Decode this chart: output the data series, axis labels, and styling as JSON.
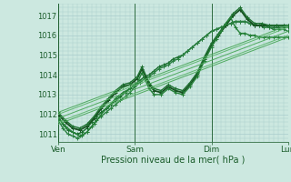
{
  "xlabel": "Pression niveau de la mer( hPa )",
  "bg_color": "#cce8e0",
  "grid_color": "#aacccc",
  "text_color": "#1a5c2a",
  "xlim": [
    0,
    96
  ],
  "ylim": [
    1010.6,
    1017.6
  ],
  "yticks": [
    1011,
    1012,
    1013,
    1014,
    1015,
    1016,
    1017
  ],
  "xtick_positions": [
    0,
    32,
    64,
    96
  ],
  "xtick_labels": [
    "Ven",
    "Sam",
    "Dim",
    "Lun"
  ],
  "series": [
    {
      "x": [
        0,
        2,
        4,
        6,
        8,
        10,
        12,
        14,
        16,
        18,
        20,
        22,
        24,
        26,
        28,
        30,
        32,
        34,
        36,
        38,
        40,
        42,
        44,
        46,
        48,
        50,
        52,
        54,
        56,
        58,
        60,
        62,
        64,
        66,
        68,
        70,
        72,
        74,
        76,
        78,
        80,
        82,
        84,
        86,
        88,
        90,
        92,
        94,
        96
      ],
      "y": [
        1011.9,
        1011.5,
        1011.2,
        1011.1,
        1011.0,
        1011.1,
        1011.3,
        1011.6,
        1011.9,
        1012.1,
        1012.3,
        1012.5,
        1012.7,
        1012.9,
        1013.1,
        1013.3,
        1013.5,
        1013.7,
        1013.9,
        1014.0,
        1014.2,
        1014.4,
        1014.5,
        1014.6,
        1014.8,
        1014.9,
        1015.0,
        1015.2,
        1015.4,
        1015.6,
        1015.8,
        1016.0,
        1016.2,
        1016.3,
        1016.4,
        1016.5,
        1016.6,
        1016.7,
        1016.7,
        1016.7,
        1016.6,
        1016.5,
        1016.5,
        1016.5,
        1016.4,
        1016.4,
        1016.4,
        1016.4,
        1016.4
      ],
      "marker": "+",
      "lw": 1.0,
      "color": "#1a6e2e",
      "ms": 2.5
    },
    {
      "x": [
        0,
        2,
        4,
        6,
        8,
        10,
        12,
        14,
        16,
        18,
        20,
        22,
        24,
        26,
        28,
        30,
        32,
        34,
        36,
        38,
        40,
        42,
        44,
        46,
        48,
        50,
        52,
        54,
        56,
        58,
        60,
        62,
        64,
        66,
        68,
        70,
        72,
        74,
        76,
        78,
        80,
        82,
        84,
        86,
        88,
        90,
        92,
        94,
        96
      ],
      "y": [
        1011.7,
        1011.3,
        1011.0,
        1010.9,
        1010.8,
        1010.9,
        1011.1,
        1011.4,
        1011.7,
        1011.9,
        1012.1,
        1012.3,
        1012.5,
        1012.7,
        1012.9,
        1013.1,
        1013.4,
        1013.6,
        1013.8,
        1013.9,
        1014.1,
        1014.3,
        1014.4,
        1014.5,
        1014.7,
        1014.8,
        1015.0,
        1015.2,
        1015.4,
        1015.6,
        1015.8,
        1016.0,
        1016.2,
        1016.3,
        1016.4,
        1016.5,
        1016.6,
        1016.7,
        1016.7,
        1016.7,
        1016.6,
        1016.5,
        1016.5,
        1016.4,
        1016.4,
        1016.3,
        1016.3,
        1016.3,
        1016.2
      ],
      "marker": "+",
      "lw": 1.0,
      "color": "#2a8040",
      "ms": 2.5
    },
    {
      "x": [
        0,
        3,
        6,
        9,
        12,
        15,
        18,
        21,
        24,
        27,
        30,
        33,
        35,
        38,
        40,
        43,
        46,
        49,
        52,
        55,
        58,
        61,
        64,
        67,
        70,
        73,
        76,
        79,
        82,
        85,
        88,
        91,
        94,
        96
      ],
      "y": [
        1012.0,
        1011.6,
        1011.3,
        1011.2,
        1011.4,
        1011.8,
        1012.3,
        1012.7,
        1013.1,
        1013.4,
        1013.5,
        1013.8,
        1014.3,
        1013.5,
        1013.2,
        1013.1,
        1013.4,
        1013.2,
        1013.1,
        1013.5,
        1014.0,
        1014.8,
        1015.5,
        1016.0,
        1016.5,
        1017.0,
        1017.3,
        1016.8,
        1016.5,
        1016.5,
        1016.5,
        1016.5,
        1016.5,
        1016.5
      ],
      "marker": "+",
      "lw": 1.3,
      "color": "#165020",
      "ms": 2.5
    },
    {
      "x": [
        0,
        3,
        6,
        9,
        12,
        15,
        18,
        21,
        24,
        27,
        30,
        33,
        35,
        38,
        40,
        43,
        46,
        49,
        52,
        55,
        58,
        61,
        64,
        67,
        70,
        73,
        76,
        79,
        82,
        85,
        88,
        91,
        94,
        96
      ],
      "y": [
        1012.1,
        1011.7,
        1011.4,
        1011.3,
        1011.5,
        1011.9,
        1012.4,
        1012.8,
        1013.2,
        1013.5,
        1013.6,
        1013.9,
        1014.4,
        1013.6,
        1013.3,
        1013.2,
        1013.5,
        1013.3,
        1013.2,
        1013.6,
        1014.1,
        1014.9,
        1015.6,
        1016.1,
        1016.6,
        1017.1,
        1017.4,
        1016.9,
        1016.6,
        1016.6,
        1016.5,
        1016.5,
        1016.5,
        1016.5
      ],
      "marker": "+",
      "lw": 1.0,
      "color": "#1e7030",
      "ms": 2.5
    },
    {
      "x": [
        0,
        3,
        6,
        9,
        12,
        15,
        18,
        21,
        24,
        27,
        30,
        33,
        35,
        38,
        40,
        43,
        46,
        49,
        52,
        55,
        58,
        61,
        64,
        66,
        68,
        70,
        72,
        74,
        76,
        78,
        80,
        82,
        84,
        86,
        88,
        90,
        92,
        94,
        96
      ],
      "y": [
        1011.8,
        1011.4,
        1011.1,
        1010.9,
        1011.1,
        1011.5,
        1012.0,
        1012.4,
        1012.8,
        1013.1,
        1013.3,
        1013.6,
        1014.1,
        1013.3,
        1013.0,
        1013.0,
        1013.3,
        1013.1,
        1013.0,
        1013.4,
        1013.9,
        1014.7,
        1015.4,
        1015.8,
        1016.2,
        1016.6,
        1016.9,
        1016.4,
        1016.1,
        1016.1,
        1016.0,
        1016.0,
        1015.9,
        1015.9,
        1015.9,
        1015.9,
        1015.9,
        1015.9,
        1015.9
      ],
      "marker": "+",
      "lw": 1.0,
      "color": "#258038",
      "ms": 2.5
    },
    {
      "x": [
        0,
        96
      ],
      "y": [
        1011.8,
        1016.2
      ],
      "marker": null,
      "lw": 0.7,
      "color": "#50aa60",
      "ms": 0
    },
    {
      "x": [
        0,
        96
      ],
      "y": [
        1011.5,
        1015.9
      ],
      "marker": null,
      "lw": 0.7,
      "color": "#50aa60",
      "ms": 0
    },
    {
      "x": [
        0,
        96
      ],
      "y": [
        1012.1,
        1016.5
      ],
      "marker": null,
      "lw": 0.7,
      "color": "#50aa60",
      "ms": 0
    },
    {
      "x": [
        0,
        96
      ],
      "y": [
        1012.0,
        1016.4
      ],
      "marker": null,
      "lw": 0.7,
      "color": "#60b870",
      "ms": 0
    },
    {
      "x": [
        0,
        96
      ],
      "y": [
        1011.6,
        1016.0
      ],
      "marker": null,
      "lw": 0.7,
      "color": "#60b870",
      "ms": 0
    }
  ]
}
